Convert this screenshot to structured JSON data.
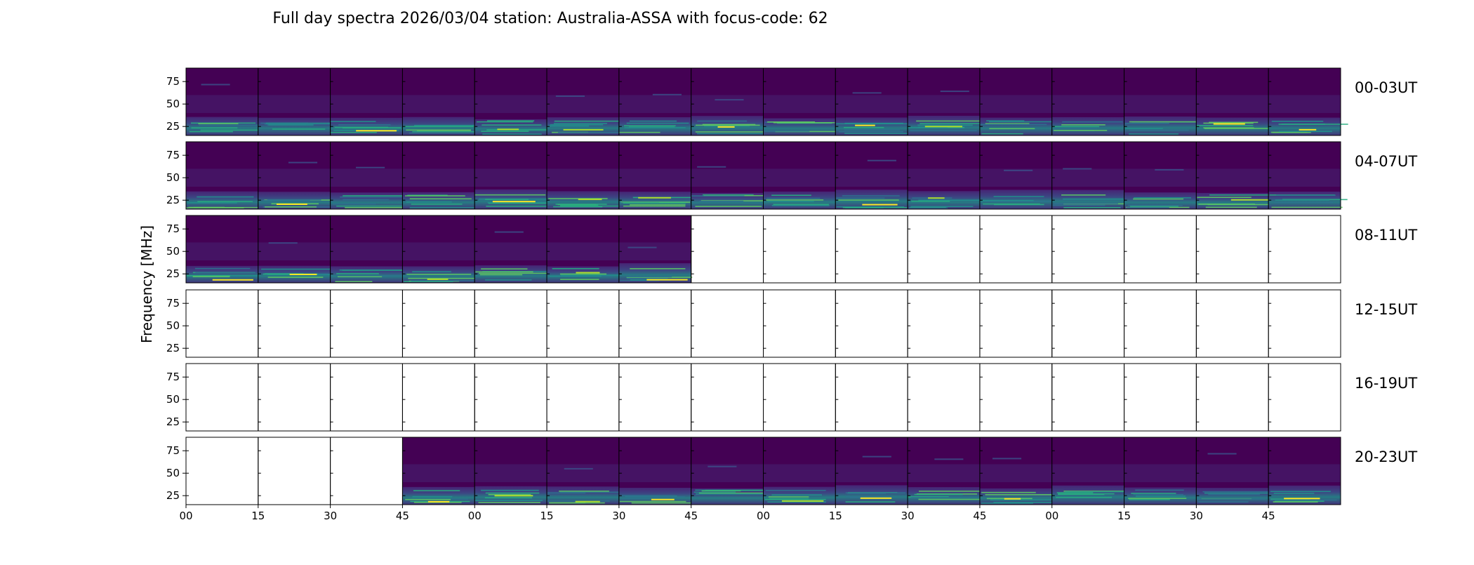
{
  "chart_data": {
    "type": "heatmap",
    "title": "Full day spectra 2026/03/04 station: Australia-ASSA with focus-code: 62",
    "ylabel": "Frequency [MHz]",
    "y_ticks": [
      "75",
      "50",
      "25"
    ],
    "y_tick_values": [
      75,
      50,
      25
    ],
    "ylim": [
      15,
      90
    ],
    "x_ticks": [
      "00",
      "15",
      "30",
      "45",
      "00",
      "15",
      "30",
      "45",
      "00",
      "15",
      "30",
      "45",
      "00",
      "15",
      "30",
      "45"
    ],
    "panels_per_row": 16,
    "colormap": [
      "#440154",
      "#482173",
      "#3b528b",
      "#2c728e",
      "#21918c",
      "#28ae80",
      "#5ec962",
      "#addc30",
      "#fde725"
    ],
    "rows": [
      {
        "label": "00-03UT",
        "filled": [
          1,
          1,
          1,
          1,
          1,
          1,
          1,
          1,
          1,
          1,
          1,
          1,
          1,
          1,
          1,
          1
        ]
      },
      {
        "label": "04-07UT",
        "filled": [
          1,
          1,
          1,
          1,
          1,
          1,
          1,
          1,
          1,
          1,
          1,
          1,
          1,
          1,
          1,
          1
        ]
      },
      {
        "label": "08-11UT",
        "filled": [
          1,
          1,
          1,
          1,
          1,
          1,
          1,
          0,
          0,
          0,
          0,
          0,
          0,
          0,
          0,
          0
        ]
      },
      {
        "label": "12-15UT",
        "filled": [
          0,
          0,
          0,
          0,
          0,
          0,
          0,
          0,
          0,
          0,
          0,
          0,
          0,
          0,
          0,
          0
        ]
      },
      {
        "label": "16-19UT",
        "filled": [
          0,
          0,
          0,
          0,
          0,
          0,
          0,
          0,
          0,
          0,
          0,
          0,
          0,
          0,
          0,
          0
        ]
      },
      {
        "label": "20-23UT",
        "filled": [
          0,
          0,
          0,
          1,
          1,
          1,
          1,
          1,
          1,
          1,
          1,
          1,
          1,
          1,
          1,
          1
        ]
      }
    ]
  }
}
